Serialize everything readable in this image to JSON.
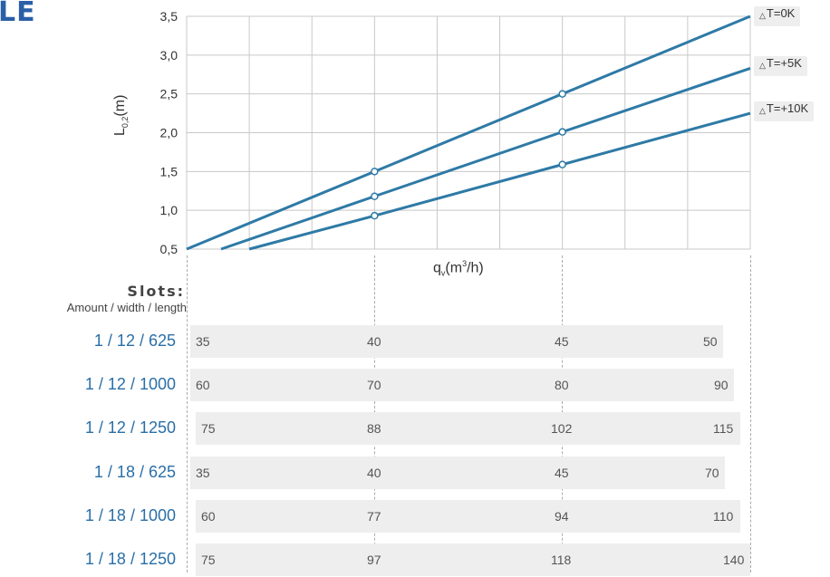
{
  "page_title": "LE",
  "chart_data": {
    "type": "line",
    "xlabel_base": "q",
    "xlabel_sub": "v",
    "xlabel_unit": "(m",
    "xlabel_sup": "3",
    "xlabel_tail": "/h)",
    "ylabel_base": "L",
    "ylabel_sub": "0,2",
    "ylabel_unit": "(m)",
    "yticks": [
      "0,5",
      "1,0",
      "1,5",
      "2,0",
      "2,5",
      "3,0",
      "3,5"
    ],
    "ylim": [
      0.5,
      3.5
    ],
    "xlim": [
      0,
      9
    ],
    "grid": true,
    "series": [
      {
        "name": "T=0K",
        "x": [
          0,
          3,
          6,
          9
        ],
        "y": [
          0.5,
          1.5,
          2.5,
          3.5
        ],
        "marker_idx": [
          1,
          2
        ]
      },
      {
        "name": "T=+5K",
        "x": [
          0.55,
          3,
          6,
          9
        ],
        "y": [
          0.5,
          1.18,
          2.01,
          2.83
        ],
        "marker_idx": [
          1,
          2
        ]
      },
      {
        "name": "T=+10K",
        "x": [
          1,
          3,
          6,
          9
        ],
        "y": [
          0.5,
          0.93,
          1.59,
          2.25
        ],
        "marker_idx": [
          1,
          2
        ]
      }
    ],
    "legend_triangle": "△"
  },
  "table": {
    "title": "Slots:",
    "subtitle": "Amount / width / length",
    "rows": [
      {
        "label": "1 / 12 / 625",
        "values": [
          "35",
          "40",
          "45",
          "50"
        ]
      },
      {
        "label": "1 / 12 / 1000",
        "values": [
          "60",
          "70",
          "80",
          "90"
        ]
      },
      {
        "label": "1 / 12 / 1250",
        "values": [
          "75",
          "88",
          "102",
          "115"
        ]
      },
      {
        "label": "1 / 18 / 625",
        "values": [
          "35",
          "40",
          "45",
          "70"
        ]
      },
      {
        "label": "1 / 18 / 1000",
        "values": [
          "60",
          "77",
          "94",
          "110"
        ]
      },
      {
        "label": "1 / 18 / 1250",
        "values": [
          "75",
          "97",
          "118",
          "140"
        ]
      }
    ]
  },
  "colors": {
    "line": "#2e7aa6",
    "grid": "#c8c8c8",
    "label": "#2a6fa8",
    "row_bg": "#eeeeee"
  }
}
